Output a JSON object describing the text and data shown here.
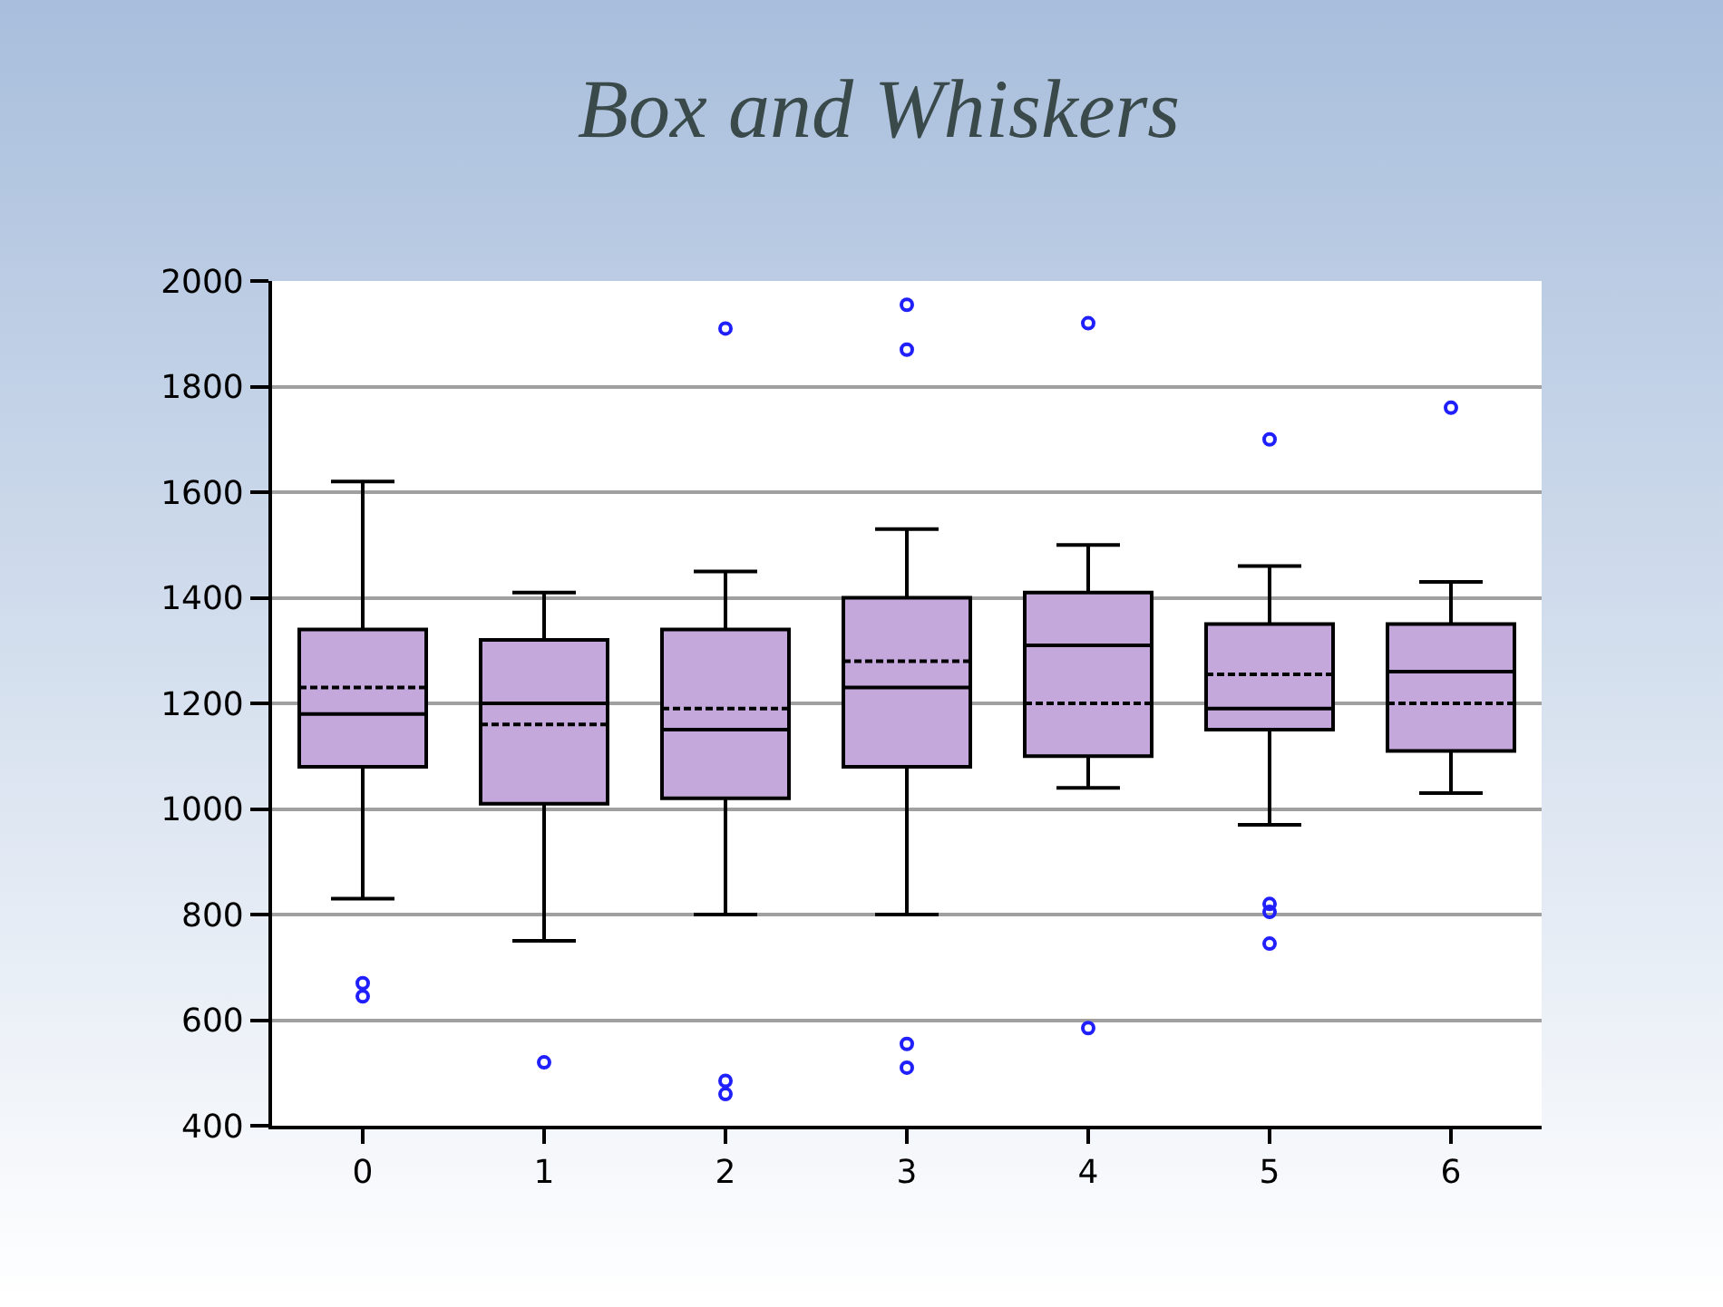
{
  "chart_data": {
    "type": "box",
    "title": "Box and Whiskers",
    "categories": [
      "0",
      "1",
      "2",
      "3",
      "4",
      "5",
      "6"
    ],
    "boxes": [
      {
        "low": 830,
        "q1": 1080,
        "median": 1180,
        "q3": 1340,
        "high": 1620,
        "mean": 1230,
        "outliers": [
          670,
          645
        ]
      },
      {
        "low": 750,
        "q1": 1010,
        "median": 1200,
        "q3": 1320,
        "high": 1410,
        "mean": 1160,
        "outliers": [
          520
        ]
      },
      {
        "low": 800,
        "q1": 1020,
        "median": 1150,
        "q3": 1340,
        "high": 1450,
        "mean": 1190,
        "outliers": [
          1910,
          485,
          460
        ]
      },
      {
        "low": 800,
        "q1": 1080,
        "median": 1230,
        "q3": 1400,
        "high": 1530,
        "mean": 1280,
        "outliers": [
          1955,
          1870,
          555,
          510
        ]
      },
      {
        "low": 1040,
        "q1": 1100,
        "median": 1310,
        "q3": 1410,
        "high": 1500,
        "mean": 1200,
        "outliers": [
          1920,
          585
        ]
      },
      {
        "low": 970,
        "q1": 1150,
        "median": 1190,
        "q3": 1350,
        "high": 1460,
        "mean": 1255,
        "outliers": [
          1700,
          820,
          805,
          745
        ]
      },
      {
        "low": 1030,
        "q1": 1110,
        "median": 1260,
        "q3": 1350,
        "high": 1430,
        "mean": 1200,
        "outliers": [
          1760
        ]
      }
    ],
    "color": "#c4a8dc",
    "ylim": [
      400,
      2000
    ],
    "yticks": [
      400,
      600,
      800,
      1000,
      1200,
      1400,
      1600,
      1800,
      2000
    ],
    "grid": "y"
  }
}
